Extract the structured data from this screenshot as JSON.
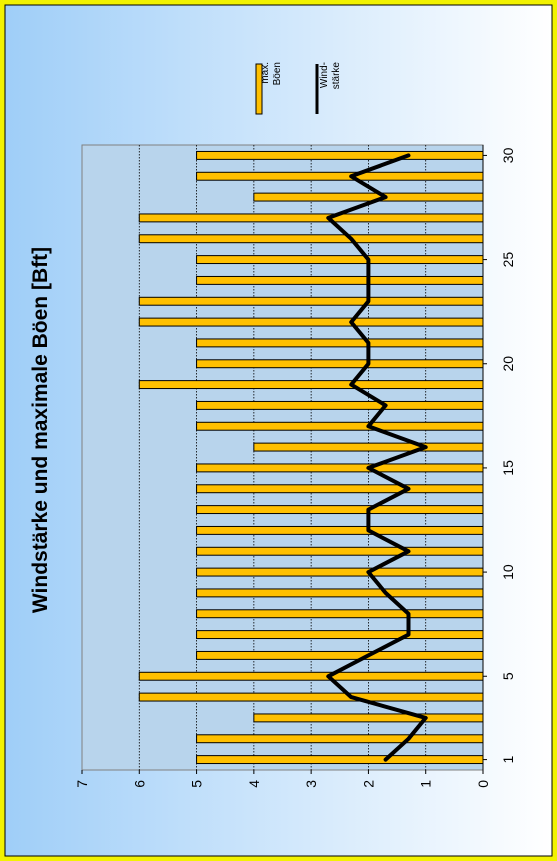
{
  "chart_data": {
    "type": "bar",
    "orientation": "rotated-90-ccw",
    "title": "Windstärke und maximale Böen [Bft]",
    "xlabel": "",
    "ylabel": "",
    "x_ticks": [
      "1",
      "5",
      "10",
      "15",
      "20",
      "25",
      "30"
    ],
    "y_ticks": [
      "0",
      "1",
      "2",
      "3",
      "4",
      "5",
      "6",
      "7"
    ],
    "ylim": [
      0,
      7
    ],
    "grid": true,
    "legend_position": "top-right",
    "categories": [
      1,
      2,
      3,
      4,
      5,
      6,
      7,
      8,
      9,
      10,
      11,
      12,
      13,
      14,
      15,
      16,
      17,
      18,
      19,
      20,
      21,
      22,
      23,
      24,
      25,
      26,
      27,
      28,
      29,
      30
    ],
    "series": [
      {
        "name": "max. Böen",
        "type": "bar",
        "color": "#FFC000",
        "values": [
          5,
          5,
          4,
          6,
          6,
          5,
          5,
          5,
          5,
          5,
          5,
          5,
          5,
          5,
          5,
          4,
          5,
          5,
          6,
          5,
          5,
          6,
          6,
          5,
          5,
          6,
          6,
          4,
          5,
          5
        ]
      },
      {
        "name": "Wind-stärke",
        "type": "line",
        "color": "#000000",
        "values": [
          1.7,
          1.3,
          1.0,
          2.3,
          2.7,
          2.0,
          1.3,
          1.3,
          1.7,
          2.0,
          1.3,
          2.0,
          2.0,
          1.3,
          2.0,
          1.0,
          2.0,
          1.7,
          2.3,
          2.0,
          2.0,
          2.3,
          2.0,
          2.0,
          2.0,
          2.3,
          2.7,
          1.7,
          2.3,
          1.3
        ]
      }
    ],
    "legend": [
      {
        "line1": "max.",
        "line2": "Böen"
      },
      {
        "line1": "Wind-",
        "line2": "stärke"
      }
    ],
    "colors": {
      "border": "#f2f200",
      "panel_start": "#9fcef8",
      "panel_end": "#ffffff",
      "plot_bg": "#b8d4ec",
      "bar_fill": "#FFC000",
      "line": "#000000"
    }
  }
}
